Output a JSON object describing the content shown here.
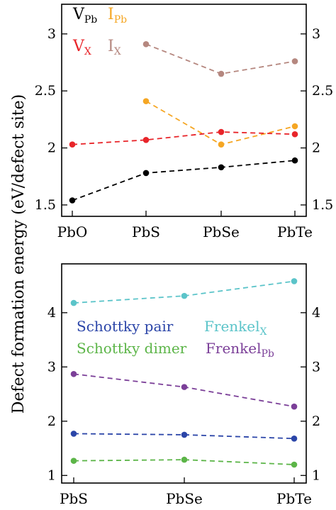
{
  "figure": {
    "ylabel": "Defect formation energy (eV/defect site)"
  },
  "chart_data": [
    {
      "type": "line",
      "categories": [
        "PbO",
        "PbS",
        "PbSe",
        "PbTe"
      ],
      "ylim": [
        1.4,
        3.26
      ],
      "yticks": [
        1.5,
        2,
        2.5,
        3
      ],
      "ytick_labels": [
        "1.5",
        "2",
        "2.5",
        "3"
      ],
      "grid": false,
      "legend_position": "top-left",
      "series": [
        {
          "name": "V_Pb",
          "main": "V",
          "sub": "Pb",
          "color": "#000000",
          "values": [
            1.54,
            1.78,
            1.83,
            1.89
          ]
        },
        {
          "name": "I_Pb",
          "main": "I",
          "sub": "Pb",
          "color": "#f5a623",
          "values": [
            null,
            2.41,
            2.03,
            2.19
          ]
        },
        {
          "name": "V_X",
          "main": "V",
          "sub": "X",
          "color": "#e8252a",
          "values": [
            2.03,
            2.07,
            2.14,
            2.12
          ]
        },
        {
          "name": "I_X",
          "main": "I",
          "sub": "X",
          "color": "#b5877f",
          "values": [
            null,
            2.91,
            2.65,
            2.76
          ]
        }
      ]
    },
    {
      "type": "line",
      "categories": [
        "PbS",
        "PbSe",
        "PbTe"
      ],
      "ylim": [
        0.86,
        4.9
      ],
      "yticks": [
        1,
        2,
        3,
        4
      ],
      "ytick_labels": [
        "1",
        "2",
        "3",
        "4"
      ],
      "grid": false,
      "legend_position": "center",
      "series": [
        {
          "name": "Schottky pair",
          "color": "#2b45a8",
          "values": [
            1.77,
            1.75,
            1.68
          ]
        },
        {
          "name": "Schottky dimer",
          "color": "#5cb548",
          "values": [
            1.27,
            1.29,
            1.2
          ]
        },
        {
          "name": "Frenkel_X",
          "main": "Frenkel",
          "sub": "X",
          "color": "#5bc4c9",
          "values": [
            4.18,
            4.31,
            4.58
          ]
        },
        {
          "name": "Frenkel_Pb",
          "main": "Frenkel",
          "sub": "Pb",
          "color": "#7b3f98",
          "values": [
            2.87,
            2.63,
            2.27
          ]
        }
      ]
    }
  ]
}
